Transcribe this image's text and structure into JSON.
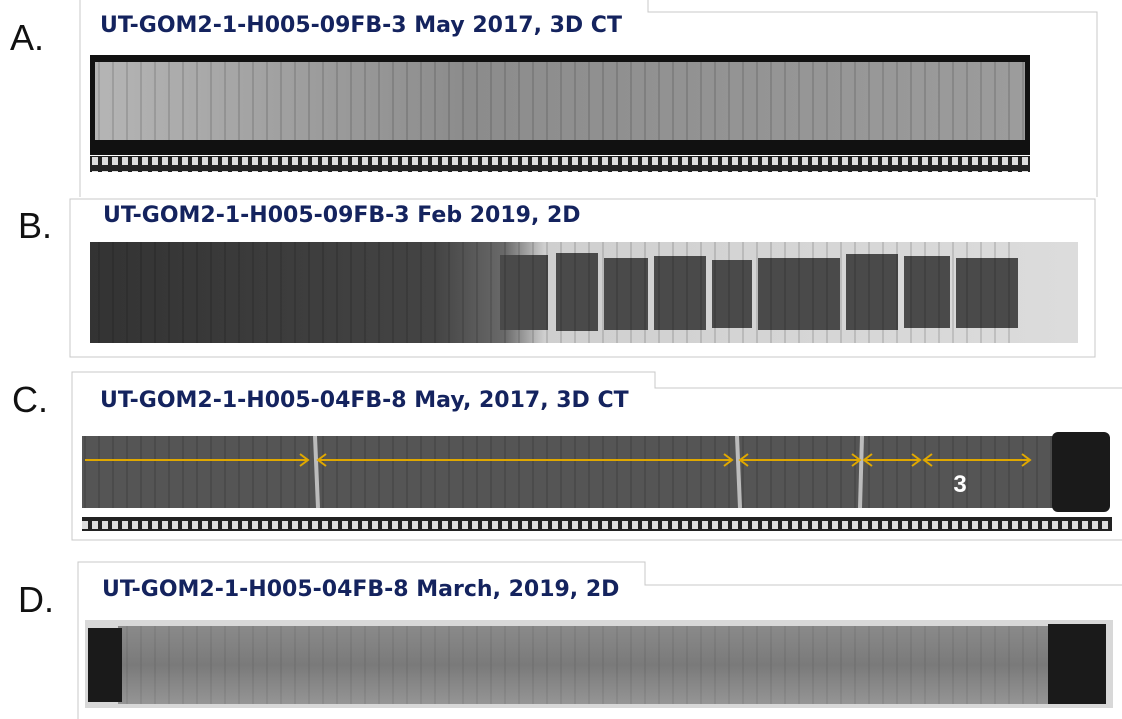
{
  "panels": [
    {
      "letter": "A.",
      "caption": "UT-GOM2-1-H005-09FB-3 May 2017, 3D CT"
    },
    {
      "letter": "B.",
      "caption": "UT-GOM2-1-H005-09FB-3 Feb 2019, 2D"
    },
    {
      "letter": "C.",
      "caption": "UT-GOM2-1-H005-04FB-8 May, 2017, 3D CT",
      "annotation": "3"
    },
    {
      "letter": "D.",
      "caption": "UT-GOM2-1-H005-04FB-8 March, 2019, 2D"
    }
  ]
}
